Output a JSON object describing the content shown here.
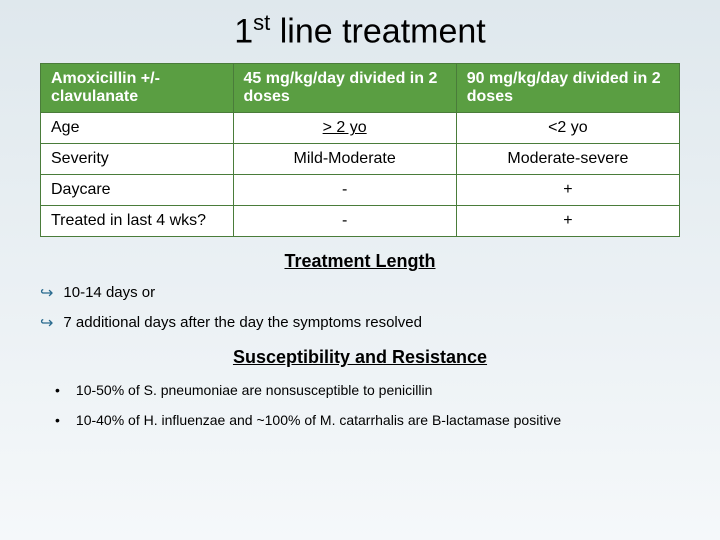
{
  "title_prefix": "1",
  "title_sup": "st",
  "title_rest": " line treatment",
  "table": {
    "header": {
      "drug": "Amoxicillin +/- clavulanate",
      "dose1": "45 mg/kg/day divided in 2 doses",
      "dose2": "90 mg/kg/day divided in 2 doses"
    },
    "rows": [
      {
        "label": "Age",
        "c1": "> 2 yo",
        "c1_style": "underline",
        "c2": "<2 yo"
      },
      {
        "label": "Severity",
        "c1": "Mild-Moderate",
        "c2": "Moderate-severe"
      },
      {
        "label": "Daycare",
        "c1": "-",
        "c2": "+"
      },
      {
        "label": "Treated in last 4 wks?",
        "c1": "-",
        "c2": "+"
      }
    ]
  },
  "treatment_heading": "Treatment Length",
  "treatment_items": [
    "10-14 days or",
    "7 additional days after the day the symptoms resolved"
  ],
  "resistance_heading": "Susceptibility and Resistance",
  "resistance_items": [
    "10-50% of S. pneumoniae are nonsusceptible to penicillin",
    "10-40% of H. influenzae and ~100% of M. catarrhalis are B-lactamase positive"
  ],
  "colors": {
    "header_bg": "#5a9e42",
    "border": "#4a7c3a",
    "arrow": "#2a6b8f"
  }
}
